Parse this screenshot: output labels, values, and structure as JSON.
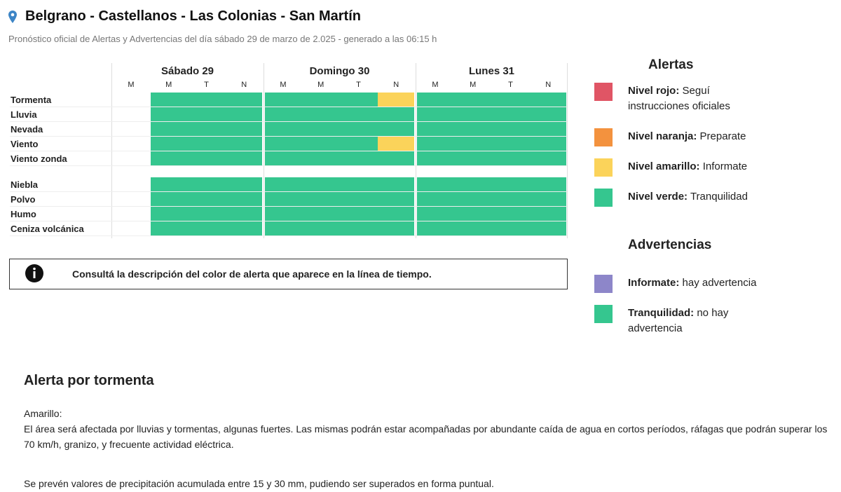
{
  "header": {
    "title": "Belgrano - Castellanos - Las Colonias - San Martín",
    "subtitle": "Pronóstico oficial de Alertas y Advertencias del día sábado 29 de marzo de 2.025 - generado a las 06:15 h"
  },
  "timeline": {
    "days": [
      {
        "name": "Sábado 29",
        "periods": [
          "M",
          "M",
          "T",
          "N"
        ]
      },
      {
        "name": "Domingo 30",
        "periods": [
          "M",
          "M",
          "T",
          "N"
        ]
      },
      {
        "name": "Lunes 31",
        "periods": [
          "M",
          "M",
          "T",
          "N"
        ]
      }
    ],
    "groups": [
      {
        "rows": [
          {
            "label": "Tormenta",
            "cells": [
              null,
              "#35c68f",
              "#35c68f",
              "#35c68f",
              "#35c68f",
              "#35c68f",
              "#35c68f",
              "#fbd35a",
              "#35c68f",
              "#35c68f",
              "#35c68f",
              "#35c68f"
            ]
          },
          {
            "label": "Lluvia",
            "cells": [
              null,
              "#35c68f",
              "#35c68f",
              "#35c68f",
              "#35c68f",
              "#35c68f",
              "#35c68f",
              "#35c68f",
              "#35c68f",
              "#35c68f",
              "#35c68f",
              "#35c68f"
            ]
          },
          {
            "label": "Nevada",
            "cells": [
              null,
              "#35c68f",
              "#35c68f",
              "#35c68f",
              "#35c68f",
              "#35c68f",
              "#35c68f",
              "#35c68f",
              "#35c68f",
              "#35c68f",
              "#35c68f",
              "#35c68f"
            ]
          },
          {
            "label": "Viento",
            "cells": [
              null,
              "#35c68f",
              "#35c68f",
              "#35c68f",
              "#35c68f",
              "#35c68f",
              "#35c68f",
              "#fbd35a",
              "#35c68f",
              "#35c68f",
              "#35c68f",
              "#35c68f"
            ]
          },
          {
            "label": "Viento zonda",
            "cells": [
              null,
              "#35c68f",
              "#35c68f",
              "#35c68f",
              "#35c68f",
              "#35c68f",
              "#35c68f",
              "#35c68f",
              "#35c68f",
              "#35c68f",
              "#35c68f",
              "#35c68f"
            ]
          }
        ]
      },
      {
        "rows": [
          {
            "label": "Niebla",
            "cells": [
              null,
              "#35c68f",
              "#35c68f",
              "#35c68f",
              "#35c68f",
              "#35c68f",
              "#35c68f",
              "#35c68f",
              "#35c68f",
              "#35c68f",
              "#35c68f",
              "#35c68f"
            ]
          },
          {
            "label": "Polvo",
            "cells": [
              null,
              "#35c68f",
              "#35c68f",
              "#35c68f",
              "#35c68f",
              "#35c68f",
              "#35c68f",
              "#35c68f",
              "#35c68f",
              "#35c68f",
              "#35c68f",
              "#35c68f"
            ]
          },
          {
            "label": "Humo",
            "cells": [
              null,
              "#35c68f",
              "#35c68f",
              "#35c68f",
              "#35c68f",
              "#35c68f",
              "#35c68f",
              "#35c68f",
              "#35c68f",
              "#35c68f",
              "#35c68f",
              "#35c68f"
            ]
          },
          {
            "label": "Ceniza volcánica",
            "cells": [
              null,
              "#35c68f",
              "#35c68f",
              "#35c68f",
              "#35c68f",
              "#35c68f",
              "#35c68f",
              "#35c68f",
              "#35c68f",
              "#35c68f",
              "#35c68f",
              "#35c68f"
            ]
          }
        ]
      }
    ]
  },
  "info_box": {
    "text": "Consultá la descripción del color de alerta que aparece en la línea de tiempo."
  },
  "legend": {
    "alertas": {
      "title": "Alertas",
      "items": [
        {
          "label": "Nivel rojo:",
          "text": "Seguí instrucciones oficiales",
          "color": "#e05565"
        },
        {
          "label": "Nivel naranja:",
          "text": "Preparate",
          "color": "#f3923e"
        },
        {
          "label": "Nivel amarillo:",
          "text": "Informate",
          "color": "#fbd35a"
        },
        {
          "label": "Nivel verde:",
          "text": "Tranquilidad",
          "color": "#35c68f"
        }
      ]
    },
    "advertencias": {
      "title": "Advertencias",
      "items": [
        {
          "label": "Informate:",
          "text": "hay advertencia",
          "color": "#8d86c9"
        },
        {
          "label": "Tranquilidad:",
          "text": "no hay advertencia",
          "color": "#35c68f"
        }
      ]
    }
  },
  "section": {
    "title": "Alerta por tormenta",
    "paragraphs": [
      "Amarillo:",
      "El área será afectada por lluvias y tormentas, algunas fuertes. Las mismas podrán estar acompañadas por abundante caída de agua en cortos períodos, ráfagas que podrán superar los 70 km/h, granizo, y frecuente actividad eléctrica.",
      "Se prevén valores de precipitación acumulada entre 15 y 30 mm, pudiendo ser superados en forma puntual."
    ]
  }
}
